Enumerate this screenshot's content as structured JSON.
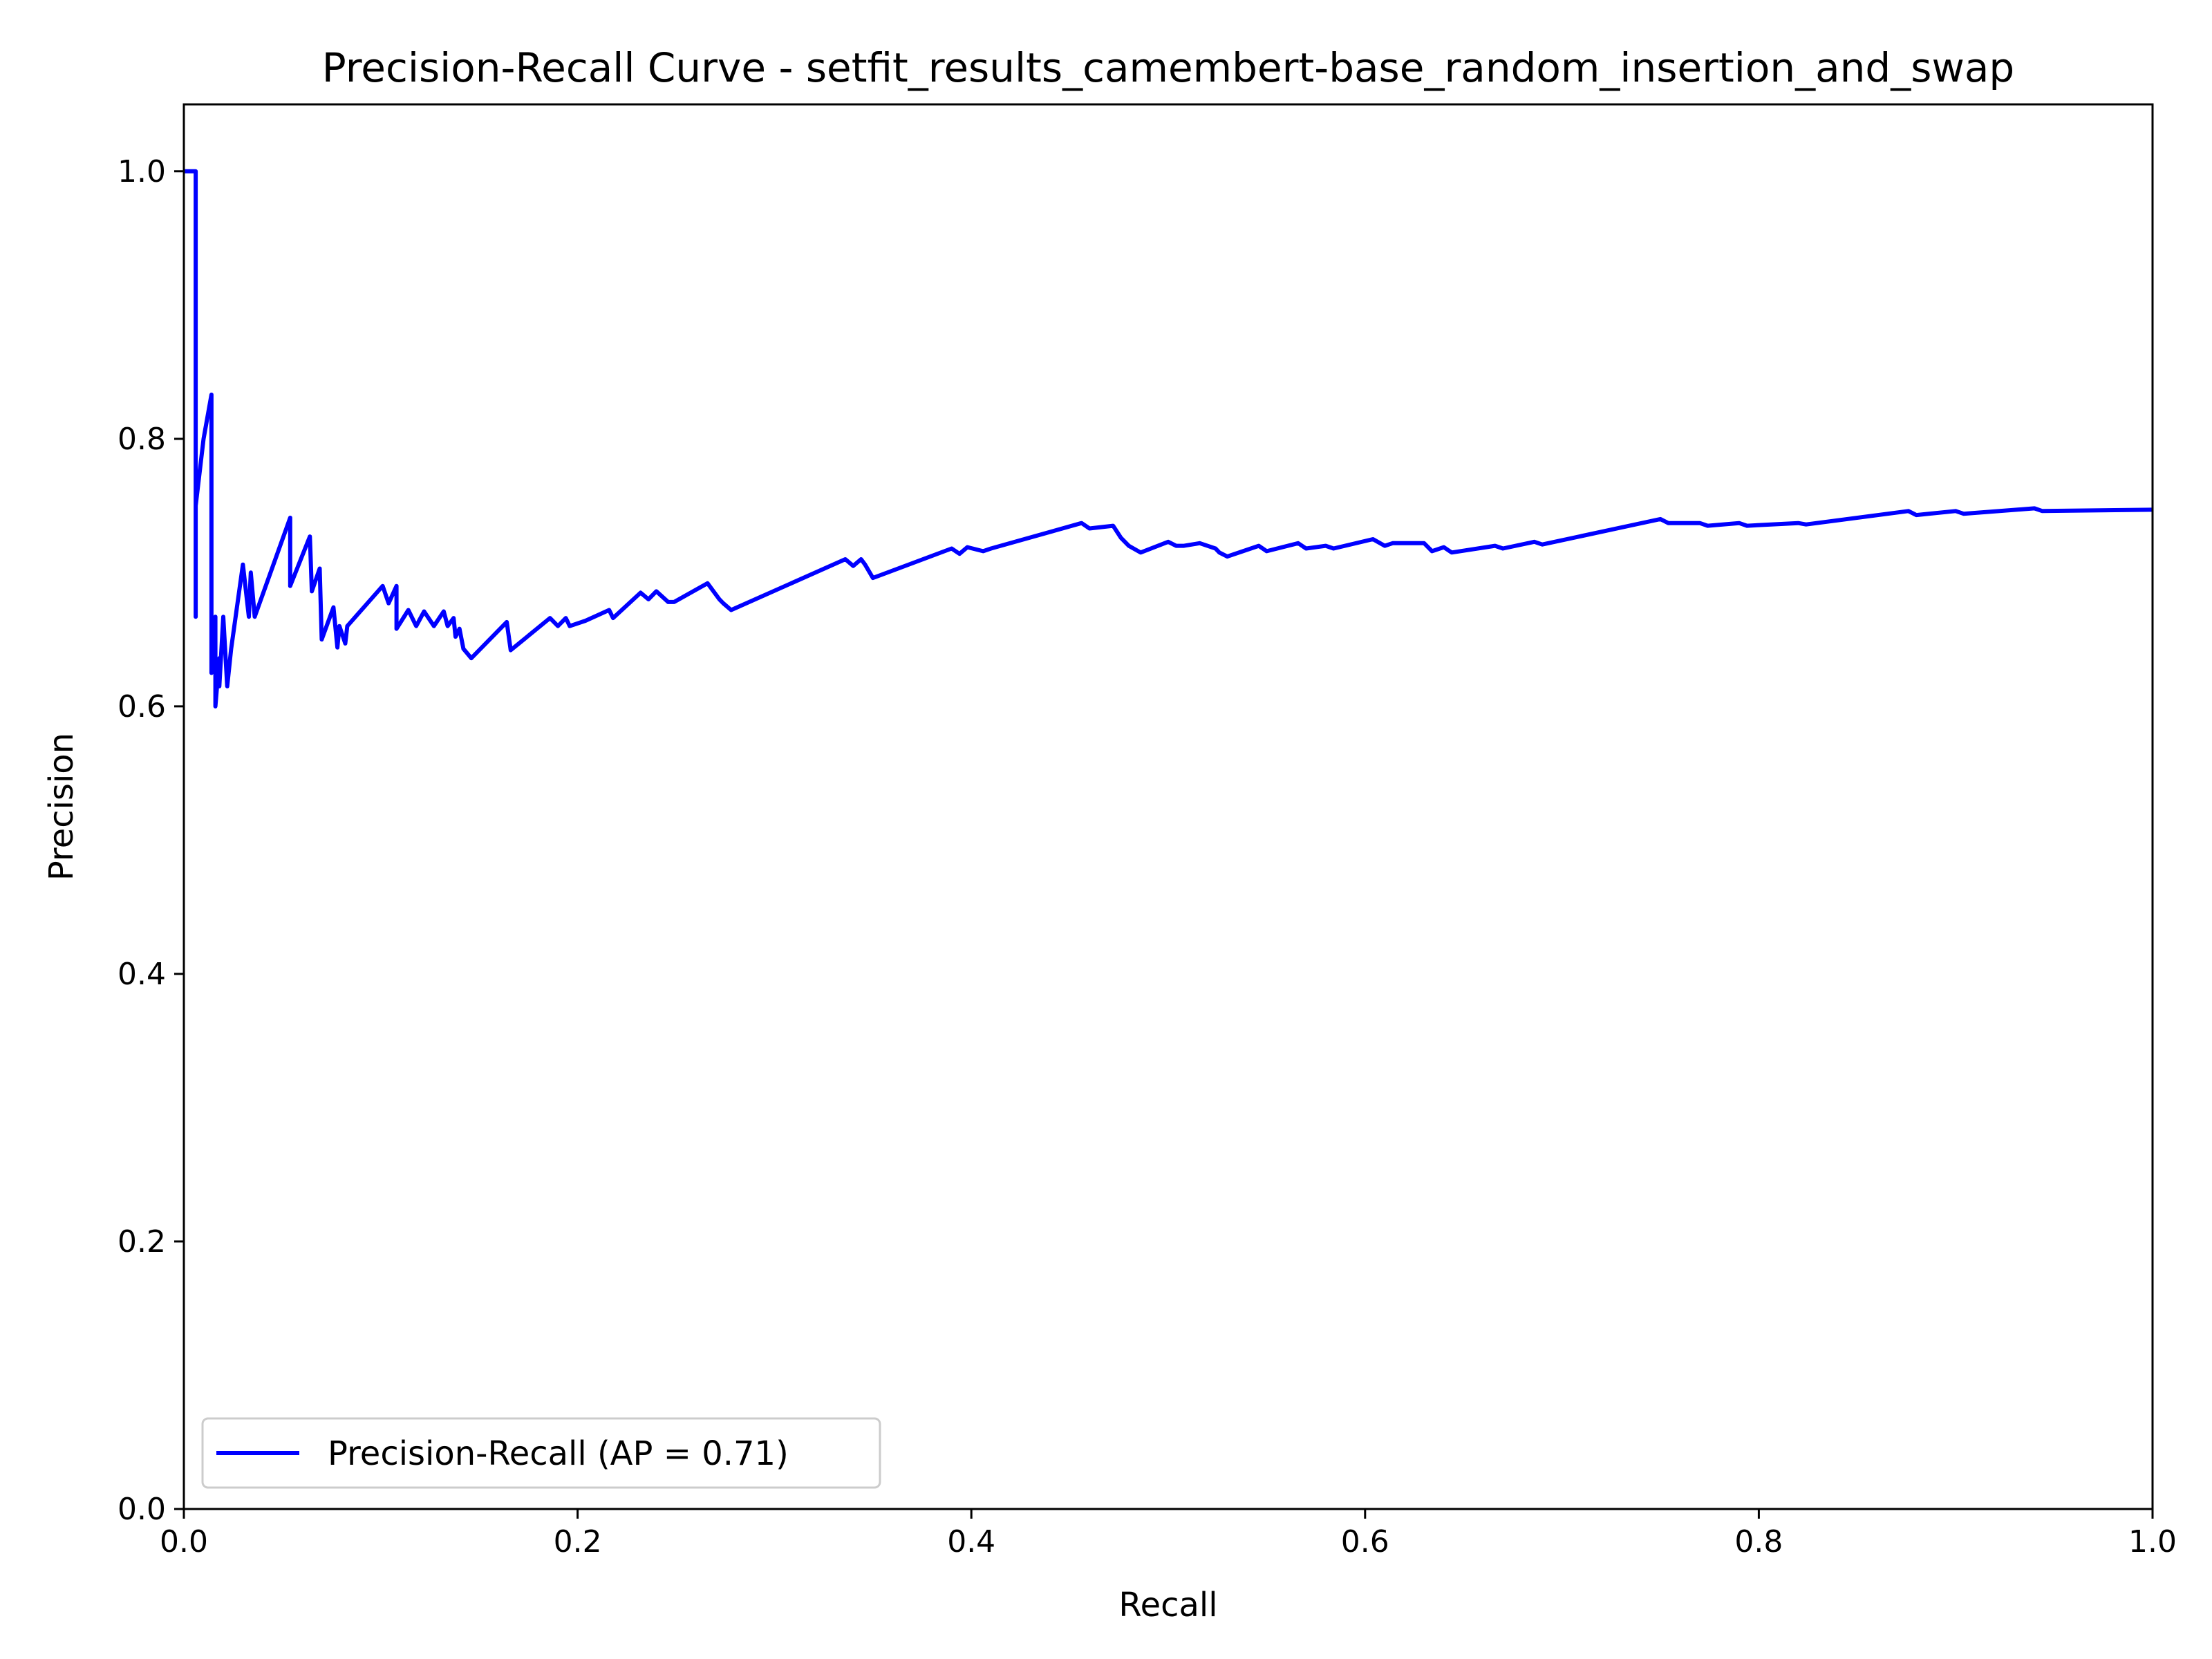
{
  "chart_data": {
    "type": "line",
    "title": "Precision-Recall Curve - setfit_results_camembert-base_random_insertion_and_swap",
    "xlabel": "Recall",
    "ylabel": "Precision",
    "xlim": [
      0.0,
      1.0
    ],
    "ylim": [
      0.0,
      1.05
    ],
    "x_ticks": [
      "0.0",
      "0.2",
      "0.4",
      "0.6",
      "0.8",
      "1.0"
    ],
    "y_ticks": [
      "0.0",
      "0.2",
      "0.4",
      "0.6",
      "0.8",
      "1.0"
    ],
    "grid": false,
    "legend_position": "lower-left",
    "colors": {
      "series": "#0000ff",
      "axes": "#000000",
      "background": "#ffffff"
    },
    "series": [
      {
        "name": "Precision-Recall (AP = 0.71)",
        "x": [
          0.0,
          0.006,
          0.006,
          0.006,
          0.01,
          0.014,
          0.014,
          0.016,
          0.016,
          0.018,
          0.018,
          0.02,
          0.022,
          0.024,
          0.03,
          0.033,
          0.034,
          0.036,
          0.054,
          0.054,
          0.064,
          0.065,
          0.069,
          0.07,
          0.076,
          0.078,
          0.079,
          0.082,
          0.083,
          0.101,
          0.104,
          0.108,
          0.108,
          0.114,
          0.118,
          0.122,
          0.127,
          0.132,
          0.134,
          0.137,
          0.138,
          0.14,
          0.142,
          0.146,
          0.164,
          0.166,
          0.186,
          0.19,
          0.194,
          0.196,
          0.204,
          0.216,
          0.218,
          0.232,
          0.236,
          0.24,
          0.246,
          0.249,
          0.266,
          0.272,
          0.274,
          0.278,
          0.336,
          0.34,
          0.344,
          0.346,
          0.35,
          0.39,
          0.394,
          0.398,
          0.406,
          0.41,
          0.456,
          0.46,
          0.472,
          0.476,
          0.48,
          0.486,
          0.5,
          0.504,
          0.508,
          0.516,
          0.524,
          0.526,
          0.53,
          0.546,
          0.55,
          0.566,
          0.57,
          0.58,
          0.584,
          0.604,
          0.61,
          0.614,
          0.63,
          0.634,
          0.64,
          0.644,
          0.666,
          0.67,
          0.686,
          0.69,
          0.75,
          0.754,
          0.77,
          0.774,
          0.79,
          0.794,
          0.82,
          0.824,
          0.876,
          0.88,
          0.9,
          0.904,
          0.94,
          0.944,
          1.0
        ],
        "y": [
          1.0,
          1.0,
          0.667,
          0.75,
          0.8,
          0.833,
          0.625,
          0.667,
          0.6,
          0.636,
          0.615,
          0.667,
          0.615,
          0.643,
          0.706,
          0.667,
          0.7,
          0.667,
          0.741,
          0.69,
          0.727,
          0.686,
          0.703,
          0.65,
          0.674,
          0.644,
          0.66,
          0.647,
          0.66,
          0.69,
          0.677,
          0.69,
          0.658,
          0.672,
          0.66,
          0.671,
          0.66,
          0.671,
          0.66,
          0.666,
          0.652,
          0.658,
          0.643,
          0.636,
          0.663,
          0.642,
          0.666,
          0.66,
          0.666,
          0.66,
          0.664,
          0.672,
          0.666,
          0.685,
          0.68,
          0.686,
          0.678,
          0.678,
          0.692,
          0.68,
          0.677,
          0.672,
          0.71,
          0.705,
          0.71,
          0.706,
          0.696,
          0.718,
          0.714,
          0.719,
          0.716,
          0.718,
          0.737,
          0.733,
          0.735,
          0.726,
          0.72,
          0.715,
          0.723,
          0.72,
          0.72,
          0.722,
          0.718,
          0.715,
          0.712,
          0.72,
          0.716,
          0.722,
          0.718,
          0.72,
          0.718,
          0.725,
          0.72,
          0.722,
          0.722,
          0.716,
          0.719,
          0.715,
          0.72,
          0.718,
          0.723,
          0.721,
          0.74,
          0.737,
          0.737,
          0.735,
          0.737,
          0.735,
          0.737,
          0.736,
          0.746,
          0.743,
          0.746,
          0.744,
          0.748,
          0.746,
          0.747
        ]
      }
    ]
  }
}
